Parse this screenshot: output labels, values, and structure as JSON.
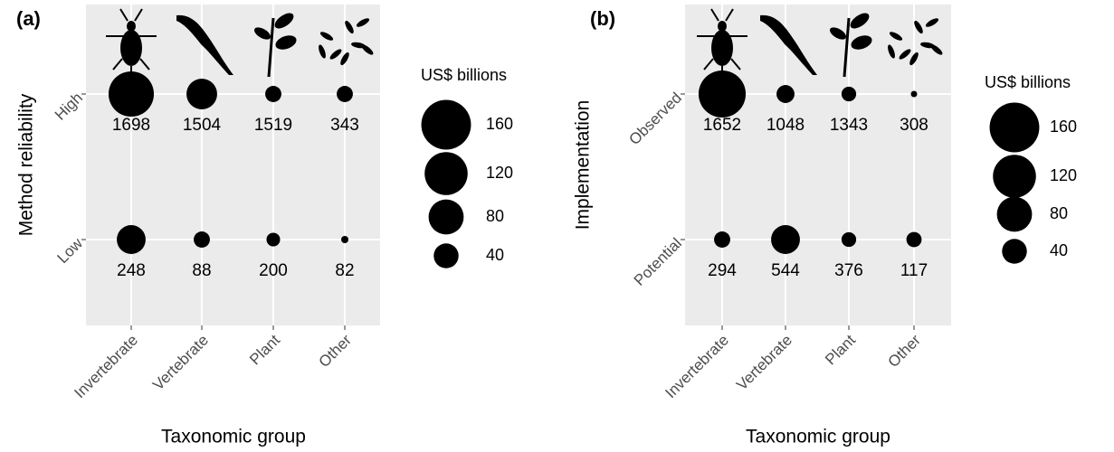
{
  "chart_data": [
    {
      "type": "bubble",
      "panel_label": "(a)",
      "x_label": "Taxonomic group",
      "y_label": "Method reliability",
      "categories": [
        "Invertebrate",
        "Vertebrate",
        "Plant",
        "Other"
      ],
      "color": "#000000",
      "background": "#ebebeb",
      "grid": true,
      "series": [
        {
          "name": "High",
          "values": [
            133,
            61,
            17,
            17
          ],
          "counts": [
            1698,
            1504,
            1519,
            343
          ]
        },
        {
          "name": "Low",
          "values": [
            54,
            17,
            12,
            3.4
          ],
          "counts": [
            248,
            88,
            200,
            82
          ]
        }
      ],
      "size_legend": {
        "title": "US$ billions",
        "values": [
          160,
          120,
          80,
          40
        ]
      }
    },
    {
      "type": "bubble",
      "panel_label": "(b)",
      "x_label": "Taxonomic group",
      "y_label": "Implementation",
      "categories": [
        "Invertebrate",
        "Vertebrate",
        "Plant",
        "Other"
      ],
      "color": "#000000",
      "background": "#ebebeb",
      "grid": true,
      "series": [
        {
          "name": "Observed",
          "values": [
            144,
            21,
            14,
            2.6
          ],
          "counts": [
            1652,
            1048,
            1343,
            308
          ]
        },
        {
          "name": "Potential",
          "values": [
            17,
            54,
            14,
            15
          ],
          "counts": [
            294,
            544,
            376,
            117
          ]
        }
      ],
      "size_legend": {
        "title": "US$ billions",
        "values": [
          160,
          120,
          80,
          40
        ]
      }
    }
  ]
}
